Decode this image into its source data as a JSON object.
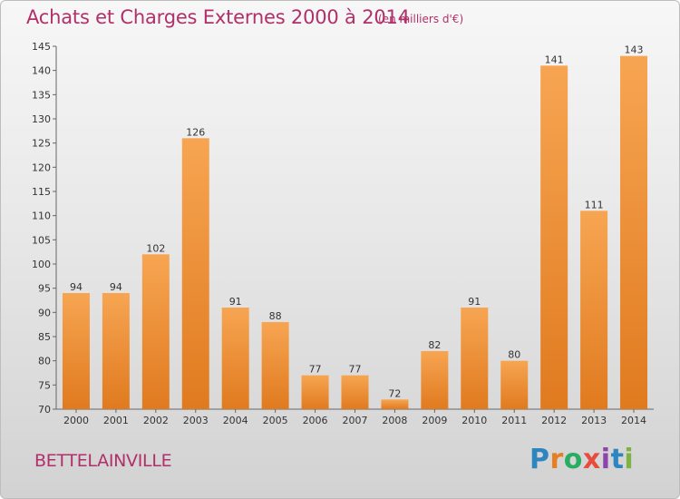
{
  "header": {
    "title": "Achats et Charges Externes 2000 à 2014",
    "subtitle": "(en milliers d'€)"
  },
  "footer": {
    "commune": "BETTELAINVILLE",
    "brand_letters": [
      {
        "ch": "P",
        "color": "#2e86c1"
      },
      {
        "ch": "r",
        "color": "#e67e22"
      },
      {
        "ch": "o",
        "color": "#27ae60"
      },
      {
        "ch": "x",
        "color": "#e74c3c"
      },
      {
        "ch": "i",
        "color": "#8e44ad"
      },
      {
        "ch": "t",
        "color": "#2e86c1"
      },
      {
        "ch": "i",
        "color": "#7cb342"
      }
    ]
  },
  "colors": {
    "bar_light": "#f7a552",
    "bar_dark": "#e07a1f",
    "title": "#b0306a"
  },
  "chart_data": {
    "type": "bar",
    "title": "Achats et Charges Externes 2000 à 2014",
    "subtitle": "(en milliers d'€)",
    "xlabel": "",
    "ylabel": "",
    "categories": [
      "2000",
      "2001",
      "2002",
      "2003",
      "2004",
      "2005",
      "2006",
      "2007",
      "2008",
      "2009",
      "2010",
      "2011",
      "2012",
      "2013",
      "2014"
    ],
    "values": [
      94,
      94,
      102,
      126,
      91,
      88,
      77,
      77,
      72,
      82,
      91,
      80,
      141,
      111,
      143
    ],
    "ylim": [
      70,
      145
    ],
    "yticks": [
      70,
      75,
      80,
      85,
      90,
      95,
      100,
      105,
      110,
      115,
      120,
      125,
      130,
      135,
      140,
      145
    ],
    "grid": false,
    "legend": "none"
  }
}
